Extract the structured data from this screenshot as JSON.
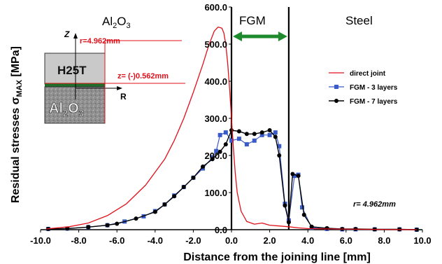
{
  "colors": {
    "direct": "#e0101a",
    "fgm3": "#3a5bc7",
    "fgm7": "#000000",
    "arrow": "#1e8a2e",
    "annotation": "#e0101a",
    "ceramic": "#9a9a9a",
    "metal": "#cfcfcf"
  },
  "chart_data": {
    "type": "line",
    "xlabel": "Distance from  the joining line [mm]",
    "ylabel": "Residual  stresses  σMAX  [MPa]",
    "ylabel_parts": {
      "main": "Residual  stresses  σ",
      "sub": "MAX",
      "unit": "  [MPa]"
    },
    "xlim": [
      -10.0,
      10.0
    ],
    "ylim": [
      0.0,
      600.0
    ],
    "x_ticks": [
      "-10.0",
      "-8.0",
      "-6.0",
      "-4.0",
      "-2.0",
      "0.0",
      "2.0",
      "4.0",
      "6.0",
      "8.0",
      "10.0"
    ],
    "x_tick_values": [
      -10,
      -8,
      -6,
      -4,
      -2,
      0,
      2,
      4,
      6,
      8,
      10
    ],
    "y_ticks": [
      "0.0",
      "100.0",
      "200.0",
      "300.0",
      "400.0",
      "500.0",
      "600.0"
    ],
    "y_tick_values": [
      0,
      100,
      200,
      300,
      400,
      500,
      600
    ],
    "grid": false,
    "legend_position": "right",
    "series": [
      {
        "name": "direct joint",
        "marker": "none",
        "x": [
          -9.7,
          -8.5,
          -7.5,
          -6.5,
          -5.5,
          -4.5,
          -3.5,
          -3.0,
          -2.5,
          -2.0,
          -1.5,
          -1.2,
          -0.9,
          -0.7,
          -0.5,
          -0.4,
          -0.3,
          -0.2,
          -0.1,
          0.0,
          0.1,
          0.2,
          0.3,
          0.5,
          0.8,
          1.2,
          1.6,
          2.0,
          2.5,
          3.0,
          3.5,
          4.0,
          5.0,
          7.0,
          9.7
        ],
        "y": [
          2,
          8,
          18,
          38,
          70,
          120,
          190,
          240,
          300,
          370,
          445,
          495,
          535,
          546,
          543,
          530,
          500,
          450,
          380,
          300,
          220,
          150,
          100,
          50,
          22,
          15,
          18,
          12,
          10,
          8,
          5,
          3,
          2,
          1,
          0
        ]
      },
      {
        "name": "FGM - 3 layers",
        "marker": "square",
        "x": [
          -9.6,
          -8.6,
          -7.5,
          -6.5,
          -5.6,
          -4.6,
          -4.0,
          -3.5,
          -3.0,
          -2.5,
          -2.0,
          -1.5,
          -1.0,
          -0.8,
          -0.6,
          -0.3,
          0.0,
          0.4,
          0.8,
          1.2,
          1.6,
          2.0,
          2.3,
          2.5,
          2.8,
          3.0,
          3.3,
          3.5,
          3.7,
          4.2,
          5.0,
          5.8,
          6.5,
          7.5,
          8.8,
          9.7
        ],
        "y": [
          2,
          3,
          7,
          12,
          22,
          36,
          50,
          68,
          92,
          115,
          140,
          165,
          195,
          212,
          255,
          262,
          240,
          245,
          230,
          240,
          255,
          255,
          262,
          225,
          70,
          25,
          145,
          148,
          60,
          5,
          2,
          1,
          1,
          1,
          1,
          0
        ]
      },
      {
        "name": "FGM - 7 layers",
        "marker": "circle",
        "x": [
          -9.6,
          -8.6,
          -7.5,
          -6.5,
          -6.0,
          -5.0,
          -4.0,
          -3.5,
          -3.0,
          -2.5,
          -2.0,
          -1.5,
          -1.0,
          -0.6,
          -0.3,
          0.0,
          0.4,
          0.8,
          1.2,
          1.6,
          2.0,
          2.3,
          2.5,
          2.8,
          3.0,
          3.2,
          3.5,
          3.8,
          4.2,
          5.0,
          5.8,
          6.5,
          7.5,
          8.8,
          9.7
        ],
        "y": [
          2,
          3,
          7,
          12,
          16,
          30,
          48,
          68,
          90,
          115,
          140,
          170,
          190,
          210,
          230,
          268,
          265,
          258,
          258,
          262,
          268,
          250,
          200,
          65,
          20,
          150,
          145,
          40,
          8,
          4,
          2,
          2,
          1,
          1,
          0
        ]
      }
    ],
    "vertical_lines_x": [
      0.0,
      3.0
    ]
  },
  "regions": {
    "al2o3": {
      "main": "Al",
      "sub1": "2",
      "mid": "O",
      "sub2": "3"
    },
    "fgm": "FGM",
    "steel": "Steel"
  },
  "annotations": {
    "r_value": "r= 4.962mm",
    "inset_r": "r=4.962mm",
    "inset_z": "z= (-)0.562mm",
    "inset_top_label": "H25T",
    "inset_bottom_label": "Al2O3",
    "inset_axis_z": "Z",
    "inset_axis_r": "R"
  }
}
